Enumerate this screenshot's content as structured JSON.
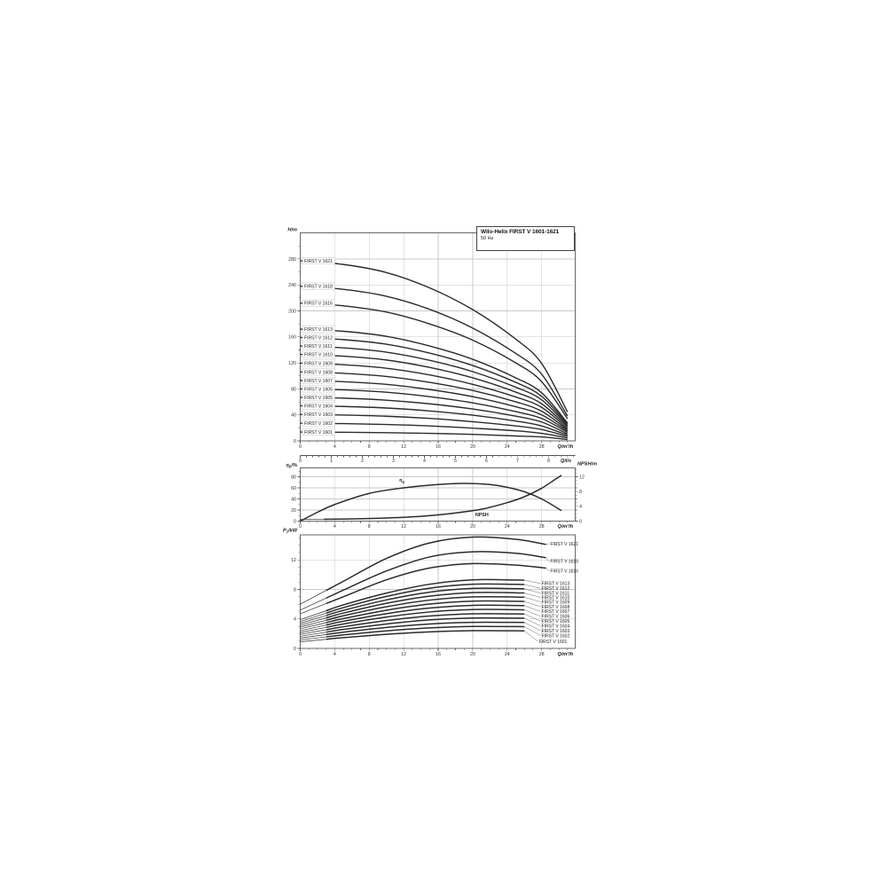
{
  "title_block": {
    "title": "Wilo-Helix FIRST V 1601-1621",
    "subtitle": "50 Hz"
  },
  "colors": {
    "curve": "#2b2b2b",
    "grid": "#c9c9c9",
    "frame": "#666666",
    "axis": "#555555",
    "text": "#1a1a1a",
    "tick_text": "#333333",
    "leader": "#555555"
  },
  "chart_data": [
    {
      "id": "head_curves",
      "type": "line",
      "ylabel": "H/m",
      "ylabel_segs": [
        {
          "t": "H/m"
        }
      ],
      "xlabel": "Q/m³/h",
      "xlabel_segs": [
        {
          "t": "Q/m³/h"
        }
      ],
      "x_ticks": [
        0,
        4,
        8,
        12,
        16,
        20,
        24,
        28
      ],
      "y_ticks": [
        0,
        40,
        80,
        120,
        160,
        200,
        240,
        280
      ],
      "xlim": [
        0,
        31.9
      ],
      "ylim": [
        0,
        320
      ],
      "x": [
        0,
        5,
        10,
        15,
        20,
        25,
        28,
        31
      ],
      "series": [
        {
          "name": "FIRST V 1621",
          "values": [
            277,
            271.5,
            259,
            235.5,
            202,
            156.5,
            119,
            44.5
          ]
        },
        {
          "name": "FIRST V 1618",
          "values": [
            238,
            233.2,
            222.5,
            202.5,
            173.5,
            134.5,
            102.5,
            38
          ]
        },
        {
          "name": "FIRST V 1616",
          "values": [
            212,
            207.8,
            198.2,
            180,
            155,
            120,
            91,
            34
          ]
        },
        {
          "name": "FIRST V 1613",
          "values": [
            172,
            168.6,
            160.8,
            146,
            125.5,
            97,
            74,
            27.5
          ]
        },
        {
          "name": "FIRST V 1612",
          "values": [
            159,
            155.8,
            148.7,
            135,
            116,
            90,
            68.5,
            25.5
          ]
        },
        {
          "name": "FIRST V 1611",
          "values": [
            146,
            143.1,
            136.5,
            124,
            106.5,
            82.5,
            63,
            23.5
          ]
        },
        {
          "name": "FIRST V 1610",
          "values": [
            133,
            130.3,
            124.4,
            113,
            97,
            75,
            57,
            21.5
          ]
        },
        {
          "name": "FIRST V 1609",
          "values": [
            119.5,
            117.1,
            111.7,
            101.5,
            87,
            67.5,
            51.5,
            19
          ]
        },
        {
          "name": "FIRST V 1608",
          "values": [
            106,
            103.9,
            99.1,
            90,
            77.5,
            60,
            45.5,
            17
          ]
        },
        {
          "name": "FIRST V 1607",
          "values": [
            93,
            91.1,
            87,
            79,
            68,
            52.5,
            40,
            15
          ]
        },
        {
          "name": "FIRST V 1606",
          "values": [
            80,
            78.4,
            74.8,
            68,
            58.5,
            45,
            34.5,
            13
          ]
        },
        {
          "name": "FIRST V 1605",
          "values": [
            67,
            65.7,
            62.6,
            57,
            49,
            38,
            29,
            10.5
          ]
        },
        {
          "name": "FIRST V 1604",
          "values": [
            54,
            52.9,
            50.5,
            46,
            39.5,
            30.5,
            23,
            8.5
          ]
        },
        {
          "name": "FIRST V 1603",
          "values": [
            40.5,
            39.7,
            37.9,
            34.5,
            29.5,
            23,
            17.5,
            6.5
          ]
        },
        {
          "name": "FIRST V 1602",
          "values": [
            27,
            26.5,
            25.2,
            23,
            19.5,
            15.5,
            11.5,
            4.5
          ]
        },
        {
          "name": "FIRST V 1601",
          "values": [
            13.5,
            13.2,
            12.6,
            11.5,
            10,
            7.5,
            6,
            2
          ]
        }
      ]
    },
    {
      "id": "flow_axis_ls",
      "type": "axis",
      "label": "Q/l/s",
      "label_segs": [
        {
          "t": "Q/l/s"
        }
      ],
      "ticks": [
        0,
        1,
        2,
        3,
        4,
        5,
        6,
        7,
        8
      ]
    },
    {
      "id": "efficiency_npsh",
      "type": "line",
      "left_ylabel": "ηp/%",
      "left_ylabel_segs": [
        {
          "t": "η"
        },
        {
          "t": "p",
          "sub": true
        },
        {
          "t": "/%"
        }
      ],
      "right_ylabel": "NPSH/m",
      "right_ylabel_segs": [
        {
          "t": "NPSH/m"
        }
      ],
      "xlabel": "Q/m³/h",
      "xlabel_segs": [
        {
          "t": "Q/m³/h"
        }
      ],
      "x_ticks": [
        0,
        4,
        8,
        12,
        16,
        20,
        24,
        28
      ],
      "left_ticks": [
        0,
        20,
        40,
        60,
        80
      ],
      "right_ticks": [
        0,
        4,
        8,
        12
      ],
      "xlim": [
        0,
        31.9
      ],
      "left_ylim": [
        0,
        96
      ],
      "right_ylim": [
        0,
        14.4
      ],
      "series": [
        {
          "name": "ηp",
          "name_segs": [
            {
              "t": "η"
            },
            {
              "t": "p",
              "sub": true
            }
          ],
          "axis": "left",
          "x": [
            0,
            2,
            4,
            8,
            12,
            16,
            19,
            22,
            24,
            26,
            28,
            30.3
          ],
          "values": [
            0,
            16,
            30,
            50,
            60,
            66,
            68,
            66,
            61,
            53,
            40,
            19
          ],
          "label_at": [
            11.5,
            71
          ]
        },
        {
          "name": "NPSH",
          "name_segs": [
            {
              "t": "NPSH"
            }
          ],
          "axis": "right",
          "x": [
            0,
            3,
            6,
            10,
            14,
            18,
            21,
            24,
            26,
            28,
            29.5,
            30.3
          ],
          "values": [
            0.45,
            0.5,
            0.6,
            0.85,
            1.3,
            2.2,
            3.2,
            5,
            6.6,
            8.9,
            11.2,
            12.4
          ],
          "label_at": [
            20.3,
            1.3
          ]
        }
      ]
    },
    {
      "id": "power_curves",
      "type": "line",
      "ylabel": "P1/kW",
      "ylabel_segs": [
        {
          "t": "P"
        },
        {
          "t": "1",
          "sub": true
        },
        {
          "t": "/kW"
        }
      ],
      "xlabel": "Q/m³/h",
      "xlabel_segs": [
        {
          "t": "Q/m³/h"
        }
      ],
      "x_ticks": [
        0,
        4,
        8,
        12,
        16,
        20,
        24,
        28
      ],
      "y_ticks": [
        0,
        4,
        8,
        12
      ],
      "xlim": [
        0,
        31.9
      ],
      "ylim": [
        0,
        15.4
      ],
      "series": [
        {
          "name": "FIRST V 1621",
          "x": [
            0,
            5,
            10,
            15,
            20,
            25,
            28.5
          ],
          "values": [
            6,
            9.1,
            12.2,
            14.3,
            15.1,
            14.8,
            14.1
          ],
          "label_p": 14.2,
          "label_q": 29
        },
        {
          "name": "FIRST V 1618",
          "x": [
            0,
            5,
            10,
            15,
            20,
            25,
            28.5
          ],
          "values": [
            5.2,
            7.9,
            10.5,
            12.4,
            13.1,
            12.9,
            12.3
          ],
          "label_p": 11.8,
          "label_q": 29
        },
        {
          "name": "FIRST V 1616",
          "x": [
            0,
            5,
            10,
            15,
            20,
            25,
            28.5
          ],
          "values": [
            4.7,
            7,
            9.3,
            10.9,
            11.5,
            11.3,
            10.9
          ],
          "label_p": 10.5,
          "label_q": 29
        },
        {
          "name": "FIRST V 1613",
          "x": [
            0,
            5,
            10,
            15,
            20,
            25,
            26
          ],
          "values": [
            3.9,
            5.9,
            7.5,
            8.7,
            9.3,
            9.28,
            9.25
          ],
          "label_p": 8.8,
          "label_q": 28
        },
        {
          "name": "FIRST V 1612",
          "x": [
            0,
            5,
            10,
            15,
            20,
            25,
            26
          ],
          "values": [
            3.65,
            5.53,
            7.05,
            8.17,
            8.71,
            8.69,
            8.66
          ],
          "label_p": 8.15,
          "label_q": 28
        },
        {
          "name": "FIRST V 1611",
          "x": [
            0,
            5,
            10,
            15,
            20,
            25,
            26
          ],
          "values": [
            3.4,
            5.16,
            6.58,
            7.63,
            8.13,
            8.11,
            8.08
          ],
          "label_p": 7.5,
          "label_q": 28
        },
        {
          "name": "FIRST V 1610",
          "x": [
            0,
            5,
            10,
            15,
            20,
            25,
            26
          ],
          "values": [
            3.15,
            4.79,
            6.12,
            7.09,
            7.56,
            7.54,
            7.51
          ],
          "label_p": 6.9,
          "label_q": 28
        },
        {
          "name": "FIRST V 1609",
          "x": [
            0,
            5,
            10,
            15,
            20,
            25,
            26
          ],
          "values": [
            2.9,
            4.42,
            5.65,
            6.55,
            6.99,
            6.97,
            6.94
          ],
          "label_p": 6.3,
          "label_q": 28
        },
        {
          "name": "FIRST V 1608",
          "x": [
            0,
            5,
            10,
            15,
            20,
            25,
            26
          ],
          "values": [
            2.65,
            4.05,
            5.18,
            6.01,
            6.41,
            6.39,
            6.37
          ],
          "label_p": 5.65,
          "label_q": 28
        },
        {
          "name": "FIRST V 1607",
          "x": [
            0,
            5,
            10,
            15,
            20,
            25,
            26
          ],
          "values": [
            2.4,
            3.68,
            4.71,
            5.47,
            5.84,
            5.82,
            5.8
          ],
          "label_p": 5.0,
          "label_q": 28
        },
        {
          "name": "FIRST V 1606",
          "x": [
            0,
            5,
            10,
            15,
            20,
            25,
            26
          ],
          "values": [
            2.15,
            3.31,
            4.25,
            4.94,
            5.27,
            5.25,
            5.23
          ],
          "label_p": 4.35,
          "label_q": 28
        },
        {
          "name": "FIRST V 1605",
          "x": [
            0,
            5,
            10,
            15,
            20,
            25,
            26
          ],
          "values": [
            1.9,
            2.94,
            3.78,
            4.39,
            4.69,
            4.67,
            4.66
          ],
          "label_p": 3.7,
          "label_q": 28
        },
        {
          "name": "FIRST V 1604",
          "x": [
            0,
            5,
            10,
            15,
            20,
            25,
            26
          ],
          "values": [
            1.65,
            2.57,
            3.31,
            3.86,
            4.12,
            4.1,
            4.09
          ],
          "label_p": 3.05,
          "label_q": 28
        },
        {
          "name": "FIRST V 1603",
          "x": [
            0,
            5,
            10,
            15,
            20,
            25,
            26
          ],
          "values": [
            1.4,
            2.2,
            2.84,
            3.31,
            3.54,
            3.53,
            3.52
          ],
          "label_p": 2.4,
          "label_q": 28
        },
        {
          "name": "FIRST V 1602",
          "x": [
            0,
            5,
            10,
            15,
            20,
            25,
            26
          ],
          "values": [
            1.15,
            1.83,
            2.38,
            2.78,
            2.97,
            2.96,
            2.95
          ],
          "label_p": 1.75,
          "label_q": 28
        },
        {
          "name": "FIRST V 1601",
          "x": [
            0,
            5,
            10,
            15,
            20,
            25,
            26
          ],
          "values": [
            0.9,
            1.46,
            1.91,
            2.24,
            2.4,
            2.39,
            2.38
          ],
          "label_p": 0.95,
          "label_q": 27.7
        }
      ]
    }
  ]
}
